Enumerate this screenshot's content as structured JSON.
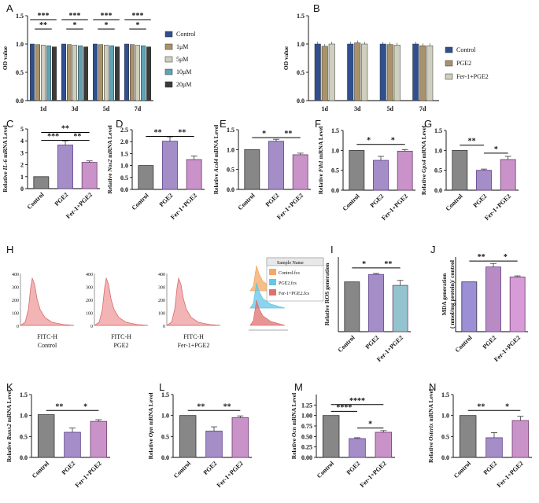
{
  "colors": {
    "control": "#878787",
    "control_edge": "#333333",
    "pge2": "#a58ec8",
    "pge2_edge": "#5c3f8a",
    "fer": "#c993c9",
    "fer_edge": "#6e3b6e",
    "ros_fer": "#93c3cf",
    "mda_ctrl": "#9d8fd6",
    "mda_pge2": "#b98bc4",
    "mda_fer": "#d79bd8",
    "A_series": [
      "#2f4f8f",
      "#a8936b",
      "#cfcfbd",
      "#5fa3b5",
      "#3b3b3b"
    ],
    "B_series": [
      "#2f4f8f",
      "#a8936b",
      "#cfcfbd"
    ],
    "flow_fill": "#f2b4b4",
    "flow_line": "#d96b6b",
    "overlay": [
      "#f3a963",
      "#64c6e8",
      "#e07070"
    ]
  },
  "chart_data": [
    {
      "id": "A",
      "label": "A",
      "type": "bar",
      "categories": [
        "1d",
        "3d",
        "5d",
        "7d"
      ],
      "series": [
        {
          "name": "Control",
          "values": [
            1.0,
            1.0,
            1.0,
            1.0
          ]
        },
        {
          "name": "1μM",
          "values": [
            0.99,
            0.99,
            0.99,
            0.99
          ]
        },
        {
          "name": "5μM",
          "values": [
            0.98,
            0.98,
            0.98,
            0.98
          ]
        },
        {
          "name": "10μM",
          "values": [
            0.97,
            0.97,
            0.97,
            0.97
          ]
        },
        {
          "name": "20μM",
          "values": [
            0.95,
            0.95,
            0.95,
            0.95
          ]
        }
      ],
      "ylabel": "OD value",
      "ylim": [
        0,
        1.5
      ],
      "yticks": [
        "0.0",
        "0.5",
        "1.0",
        "1.5"
      ],
      "sig": [
        [
          "***",
          "**"
        ],
        [
          "***",
          "*"
        ],
        [
          "***",
          "*"
        ],
        [
          "***",
          "*"
        ]
      ]
    },
    {
      "id": "B",
      "label": "B",
      "type": "bar",
      "categories": [
        "1d",
        "3d",
        "5d",
        "7d"
      ],
      "series": [
        {
          "name": "Control",
          "values": [
            1.0,
            1.0,
            1.0,
            1.0
          ]
        },
        {
          "name": "PGE2",
          "values": [
            0.96,
            1.02,
            0.99,
            0.97
          ]
        },
        {
          "name": "Fer-1+PGE2",
          "values": [
            1.0,
            1.0,
            0.98,
            0.97
          ]
        }
      ],
      "ylabel": "OD value",
      "ylim": [
        0,
        1.5
      ],
      "yticks": [
        "0.0",
        "0.5",
        "1.0",
        "1.5"
      ]
    },
    {
      "id": "C",
      "label": "C",
      "type": "bar",
      "categories": [
        "Control",
        "PGE2",
        "Fer-1+PGE2"
      ],
      "values": [
        1.0,
        3.65,
        2.2
      ],
      "errors": [
        0.0,
        0.35,
        0.12
      ],
      "ylabel_pre": "Relative ",
      "ylabel_gene": "IL-6",
      "ylabel_post": " mRNA Level",
      "ylim": [
        0,
        5
      ],
      "yticks": [
        "0",
        "1",
        "2",
        "3",
        "4",
        "5"
      ],
      "sig": [
        {
          "a": 0,
          "b": 1,
          "y": 4.05,
          "t": "***"
        },
        {
          "a": 1,
          "b": 2,
          "y": 4.05,
          "t": "**"
        },
        {
          "a": 0,
          "b": 2,
          "y": 4.7,
          "t": "**"
        }
      ]
    },
    {
      "id": "D",
      "label": "D",
      "type": "bar",
      "categories": [
        "Control",
        "PGE2",
        "Fer-1+PGE2"
      ],
      "values": [
        1.0,
        2.02,
        1.25
      ],
      "errors": [
        0.0,
        0.18,
        0.15
      ],
      "ylabel_pre": "Relative ",
      "ylabel_gene": "Nos2",
      "ylabel_post": " mRNA Level",
      "ylim": [
        0,
        2.5
      ],
      "yticks": [
        "0.0",
        "0.5",
        "1.0",
        "1.5",
        "2.0",
        "2.5"
      ],
      "sig": [
        {
          "a": 0,
          "b": 1,
          "y": 2.22,
          "t": "**"
        },
        {
          "a": 1,
          "b": 2,
          "y": 2.22,
          "t": "**"
        }
      ]
    },
    {
      "id": "E",
      "label": "E",
      "type": "bar",
      "categories": [
        "Control",
        "PGE2",
        "Fer-1+PGE2"
      ],
      "values": [
        1.0,
        1.21,
        0.87
      ],
      "errors": [
        0.0,
        0.05,
        0.04
      ],
      "ylabel_pre": "Relative ",
      "ylabel_gene": "Acsl4",
      "ylabel_post": " mRNA Level",
      "ylim": [
        0,
        1.5
      ],
      "yticks": [
        "0.0",
        "0.5",
        "1.0",
        "1.5"
      ],
      "sig": [
        {
          "a": 0,
          "b": 1,
          "y": 1.3,
          "t": "*"
        },
        {
          "a": 1,
          "b": 2,
          "y": 1.3,
          "t": "**"
        }
      ]
    },
    {
      "id": "F",
      "label": "F",
      "type": "bar",
      "categories": [
        "Control",
        "PGE2",
        "Fer-1+PGE2"
      ],
      "values": [
        1.0,
        0.75,
        0.98
      ],
      "errors": [
        0.0,
        0.1,
        0.04
      ],
      "ylabel_pre": "Relative ",
      "ylabel_gene": "Fth1",
      "ylabel_post": " mRNA Level",
      "ylim": [
        0,
        1.5
      ],
      "yticks": [
        "0.0",
        "0.5",
        "1.0",
        "1.5"
      ],
      "sig": [
        {
          "a": 0,
          "b": 1,
          "y": 1.15,
          "t": "*"
        },
        {
          "a": 1,
          "b": 2,
          "y": 1.15,
          "t": "*"
        }
      ]
    },
    {
      "id": "G",
      "label": "G",
      "type": "bar",
      "categories": [
        "Control",
        "PGE2",
        "Fer-1+PGE2"
      ],
      "values": [
        1.0,
        0.5,
        0.77
      ],
      "errors": [
        0.0,
        0.03,
        0.08
      ],
      "ylabel_pre": "Relative ",
      "ylabel_gene": "Gpx4",
      "ylabel_post": " mRNA Level",
      "ylim": [
        0,
        1.5
      ],
      "yticks": [
        "0.0",
        "0.5",
        "1.0",
        "1.5"
      ],
      "sig": [
        {
          "a": 0,
          "b": 1,
          "y": 1.13,
          "t": "**"
        },
        {
          "a": 1,
          "b": 2,
          "y": 0.93,
          "t": "*"
        }
      ]
    },
    {
      "id": "I",
      "label": "I",
      "type": "bar",
      "categories": [
        "Control",
        "PGE2",
        "Fer-1+PGE2"
      ],
      "values": [
        1.0,
        1.15,
        0.93
      ],
      "errors": [
        0.0,
        0.02,
        0.1
      ],
      "ylabel_pre": "Relative ROS generation",
      "ylabel_gene": "",
      "ylabel_post": "",
      "ylim": [
        0,
        1.5
      ],
      "yticks": [],
      "sig": [
        {
          "a": 0,
          "b": 1,
          "y": 1.28,
          "t": "*"
        },
        {
          "a": 1,
          "b": 2,
          "y": 1.28,
          "t": "**"
        }
      ]
    },
    {
      "id": "J",
      "label": "J",
      "type": "bar",
      "categories": [
        "Control",
        "PGE2",
        "Fer-1+PGE2"
      ],
      "values": [
        1.0,
        1.3,
        1.1
      ],
      "errors": [
        0.0,
        0.07,
        0.02
      ],
      "ylabel_pre": "MDA generation",
      "ylabel_line2": "( nmol/mg protein)/ control",
      "ylabel_gene": "",
      "ylabel_post": "",
      "ylim": [
        0,
        1.5
      ],
      "yticks": [],
      "sig": [
        {
          "a": 0,
          "b": 1,
          "y": 1.42,
          "t": "**"
        },
        {
          "a": 1,
          "b": 2,
          "y": 1.42,
          "t": "*"
        }
      ]
    },
    {
      "id": "K",
      "label": "K",
      "type": "bar",
      "categories": [
        "Control",
        "PGE2",
        "Fer-1+PGE2"
      ],
      "values": [
        1.02,
        0.6,
        0.86
      ],
      "errors": [
        0.0,
        0.1,
        0.04
      ],
      "ylabel_pre": "Relative ",
      "ylabel_gene": "Runx2",
      "ylabel_post": " mRNA Level",
      "ylim": [
        0,
        1.5
      ],
      "yticks": [
        "0.0",
        "0.5",
        "1.0",
        "1.5"
      ],
      "sig": [
        {
          "a": 0,
          "b": 1,
          "y": 1.12,
          "t": "**"
        },
        {
          "a": 1,
          "b": 2,
          "y": 1.12,
          "t": "*"
        }
      ]
    },
    {
      "id": "L",
      "label": "L",
      "type": "bar",
      "categories": [
        "Control",
        "PGE2",
        "Fer-1+PGE2"
      ],
      "values": [
        1.0,
        0.63,
        0.95
      ],
      "errors": [
        0.0,
        0.1,
        0.04
      ],
      "ylabel_pre": "Relative ",
      "ylabel_gene": "Opn",
      "ylabel_post": " mRNA Level",
      "ylim": [
        0,
        1.5
      ],
      "yticks": [
        "0.0",
        "0.5",
        "1.0",
        "1.5"
      ],
      "sig": [
        {
          "a": 0,
          "b": 1,
          "y": 1.12,
          "t": "**"
        },
        {
          "a": 1,
          "b": 2,
          "y": 1.12,
          "t": "**"
        }
      ]
    },
    {
      "id": "M",
      "label": "M",
      "type": "bar",
      "categories": [
        "Control",
        "PGE2",
        "Fer-1+PGE2"
      ],
      "values": [
        1.0,
        0.45,
        0.6
      ],
      "errors": [
        0.0,
        0.02,
        0.04
      ],
      "ylabel_pre": "Relative ",
      "ylabel_gene": "Ocn",
      "ylabel_post": " mRNA Level",
      "ylim": [
        0,
        1.5
      ],
      "yticks": [
        "0.00",
        "0.25",
        "0.50",
        "0.75",
        "1.00",
        "1.25"
      ],
      "sig": [
        {
          "a": 0,
          "b": 1,
          "y": 1.1,
          "t": "****"
        },
        {
          "a": 0,
          "b": 2,
          "y": 1.26,
          "t": "****"
        },
        {
          "a": 1,
          "b": 2,
          "y": 0.7,
          "t": "*"
        }
      ]
    },
    {
      "id": "N",
      "label": "N",
      "type": "bar",
      "categories": [
        "Control",
        "PGE2",
        "Fer-1+PGE2"
      ],
      "values": [
        1.0,
        0.47,
        0.88
      ],
      "errors": [
        0.0,
        0.12,
        0.1
      ],
      "ylabel_pre": "Relative ",
      "ylabel_gene": "Osterix",
      "ylabel_post": " mRNA Level",
      "ylim": [
        0,
        1.5
      ],
      "yticks": [
        "0.0",
        "0.5",
        "1.0",
        "1.5"
      ],
      "sig": [
        {
          "a": 0,
          "b": 1,
          "y": 1.12,
          "t": "**"
        },
        {
          "a": 1,
          "b": 2,
          "y": 1.12,
          "t": "*"
        }
      ]
    }
  ],
  "flow": {
    "label": "H",
    "x_axis_label": "FITC-H",
    "panels": [
      "Control",
      "PGE2",
      "Fer-1+PGE2"
    ],
    "y_ticks": [
      "400",
      "300",
      "200",
      "100",
      "0"
    ],
    "overlay_header": "Sample Name",
    "overlay_samples": [
      "Control.fcs",
      "PGE2.fcs",
      "Fer-1+PGE2.fcs"
    ]
  }
}
